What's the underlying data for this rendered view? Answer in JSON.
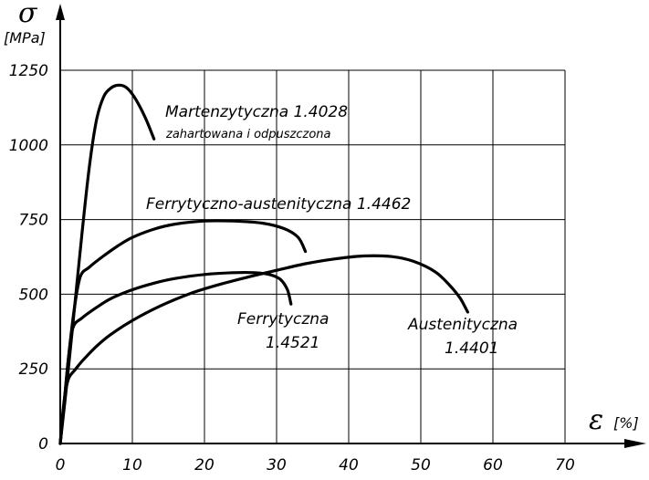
{
  "chart_data": {
    "type": "line",
    "y_symbol": "σ",
    "y_unit": "[MPa]",
    "x_symbol": "ε",
    "x_unit": "[%]",
    "xlim": [
      0,
      70
    ],
    "ylim": [
      0,
      1250
    ],
    "x_ticks": [
      0,
      10,
      20,
      30,
      40,
      50,
      60,
      70
    ],
    "y_ticks": [
      0,
      250,
      500,
      750,
      1000,
      1250
    ],
    "grid": true,
    "series": [
      {
        "name": "Martenzytyczna 1.4028",
        "annotation_line1": "Martenzytyczna 1.4028",
        "annotation_line2": "zahartowana i odpuszczona",
        "points": [
          [
            0,
            0
          ],
          [
            1,
            220
          ],
          [
            2,
            460
          ],
          [
            3,
            700
          ],
          [
            4,
            920
          ],
          [
            5,
            1080
          ],
          [
            6,
            1160
          ],
          [
            7,
            1190
          ],
          [
            8,
            1200
          ],
          [
            9,
            1195
          ],
          [
            10,
            1170
          ],
          [
            11,
            1130
          ],
          [
            12,
            1080
          ],
          [
            13,
            1020
          ]
        ]
      },
      {
        "name": "Ferrytyczno-austenityczna 1.4462",
        "annotation_line1": "Ferrytyczno-austenityczna 1.4462",
        "points": [
          [
            0,
            0
          ],
          [
            0.6,
            150
          ],
          [
            1.2,
            300
          ],
          [
            2,
            460
          ],
          [
            2.8,
            560
          ],
          [
            4,
            590
          ],
          [
            6,
            628
          ],
          [
            8,
            662
          ],
          [
            10,
            690
          ],
          [
            13,
            718
          ],
          [
            16,
            735
          ],
          [
            20,
            745
          ],
          [
            24,
            745
          ],
          [
            28,
            738
          ],
          [
            31,
            720
          ],
          [
            33,
            690
          ],
          [
            34,
            643
          ]
        ]
      },
      {
        "name": "Ferrytyczna 1.4521",
        "annotation_line1": "Ferrytyczna",
        "annotation_line2": "1.4521",
        "points": [
          [
            0,
            0
          ],
          [
            0.6,
            150
          ],
          [
            1.2,
            300
          ],
          [
            1.8,
            390
          ],
          [
            3,
            420
          ],
          [
            5,
            455
          ],
          [
            7,
            485
          ],
          [
            10,
            515
          ],
          [
            13,
            537
          ],
          [
            16,
            553
          ],
          [
            20,
            566
          ],
          [
            24,
            572
          ],
          [
            27,
            572
          ],
          [
            29,
            566
          ],
          [
            30.5,
            550
          ],
          [
            31.5,
            515
          ],
          [
            32,
            467
          ]
        ]
      },
      {
        "name": "Austenityczna 1.4401",
        "annotation_line1": "Austenityczna",
        "annotation_line2": "1.4401",
        "points": [
          [
            0,
            0
          ],
          [
            0.3,
            90
          ],
          [
            0.7,
            170
          ],
          [
            1.2,
            220
          ],
          [
            2,
            245
          ],
          [
            3,
            275
          ],
          [
            5,
            325
          ],
          [
            7,
            365
          ],
          [
            10,
            412
          ],
          [
            14,
            462
          ],
          [
            18,
            502
          ],
          [
            22,
            532
          ],
          [
            26,
            557
          ],
          [
            30,
            580
          ],
          [
            34,
            602
          ],
          [
            38,
            618
          ],
          [
            42,
            628
          ],
          [
            46,
            626
          ],
          [
            49,
            610
          ],
          [
            52,
            575
          ],
          [
            54,
            530
          ],
          [
            55.5,
            485
          ],
          [
            56.5,
            440
          ]
        ]
      }
    ]
  }
}
